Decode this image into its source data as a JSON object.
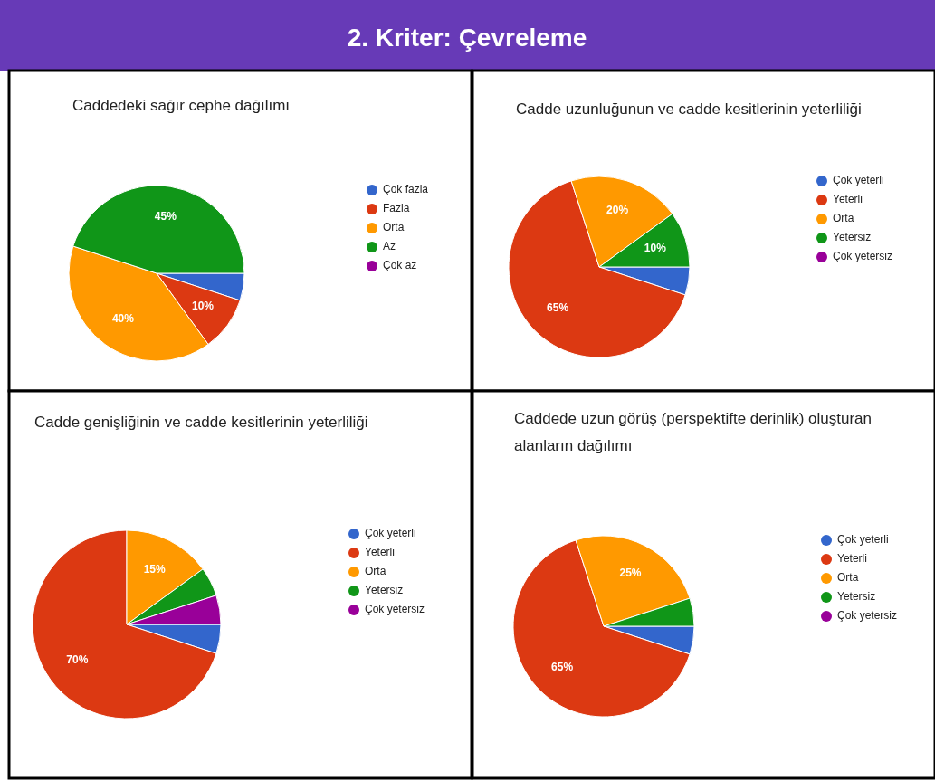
{
  "chart_data": [
    {
      "type": "other",
      "title": "2. Kriter: Çevreleme"
    },
    {
      "type": "pie",
      "title": "Caddedeki sağır cephe dağılımı",
      "legend": "right",
      "categories": [
        "Çok fazla",
        "Fazla",
        "Orta",
        "Az",
        "Çok az"
      ],
      "values": [
        5,
        10,
        40,
        45,
        0
      ],
      "colors": [
        "#3366cc",
        "#dc3912",
        "#ff9900",
        "#109618",
        "#990099"
      ],
      "value_labels": [
        null,
        "10%",
        "40%",
        "45%",
        null
      ]
    },
    {
      "type": "pie",
      "title": "Cadde uzunluğunun ve cadde kesitlerinin yeterliliği",
      "legend": "right",
      "categories": [
        "Çok yeterli",
        "Yeterli",
        "Orta",
        "Yetersiz",
        "Çok yetersiz"
      ],
      "values": [
        5,
        65,
        20,
        10,
        0
      ],
      "colors": [
        "#3366cc",
        "#dc3912",
        "#ff9900",
        "#109618",
        "#990099"
      ],
      "value_labels": [
        null,
        "65%",
        "20%",
        "10%",
        null
      ]
    },
    {
      "type": "pie",
      "title": "Cadde genişliğinin ve cadde kesitlerinin yeterliliği",
      "legend": "right",
      "categories": [
        "Çok yeterli",
        "Yeterli",
        "Orta",
        "Yetersiz",
        "Çok yetersiz"
      ],
      "values": [
        5,
        70,
        15,
        5,
        5
      ],
      "colors": [
        "#3366cc",
        "#dc3912",
        "#ff9900",
        "#109618",
        "#990099"
      ],
      "value_labels": [
        null,
        "70%",
        "15%",
        null,
        null
      ]
    },
    {
      "type": "pie",
      "title": "Caddede uzun görüş (perspektifte derinlik) oluşturan alanların dağılımı",
      "legend": "right",
      "categories": [
        "Çok yeterli",
        "Yeterli",
        "Orta",
        "Yetersiz",
        "Çok yetersiz"
      ],
      "values": [
        5,
        65,
        25,
        5,
        0
      ],
      "colors": [
        "#3366cc",
        "#dc3912",
        "#ff9900",
        "#109618",
        "#990099"
      ],
      "value_labels": [
        null,
        "65%",
        "25%",
        null,
        null
      ]
    }
  ]
}
